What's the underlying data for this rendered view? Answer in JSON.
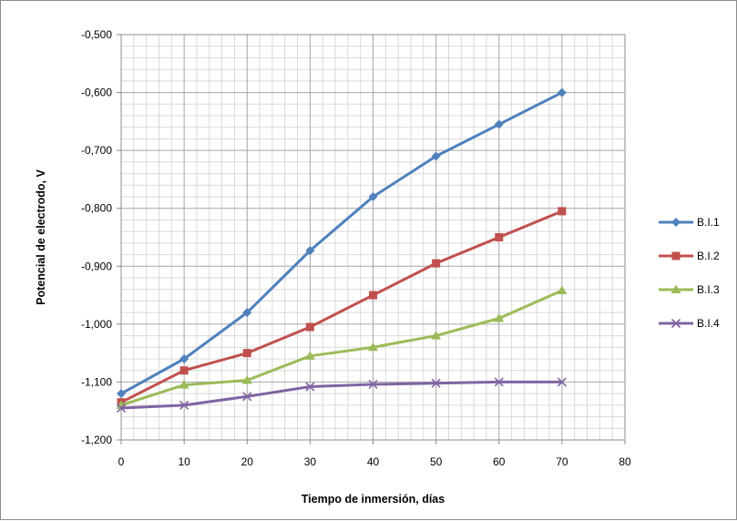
{
  "chart_data": {
    "type": "line",
    "title": "",
    "xlabel": "Tiempo de inmersión, días",
    "ylabel": "Potencial de electrodo, V",
    "xlim": [
      0,
      80
    ],
    "ylim": [
      -1.2,
      -0.5
    ],
    "x_ticks": [
      0,
      10,
      20,
      30,
      40,
      50,
      60,
      70,
      80
    ],
    "x_tick_labels": [
      "0",
      "10",
      "20",
      "30",
      "40",
      "50",
      "60",
      "70",
      "80"
    ],
    "y_ticks": [
      -0.5,
      -0.6,
      -0.7,
      -0.8,
      -0.9,
      -1.0,
      -1.1,
      -1.2
    ],
    "y_tick_labels": [
      "-0,500",
      "-0,600",
      "-0,700",
      "-0,800",
      "-0,900",
      "-1,000",
      "-1,100",
      "-1,200"
    ],
    "grid": true,
    "legend_position": "right",
    "x": [
      0,
      10,
      20,
      30,
      40,
      50,
      60,
      70
    ],
    "series": [
      {
        "name": "B.I.1",
        "color": "#4f81bd",
        "marker": "diamond",
        "values": [
          -1.12,
          -1.06,
          -0.98,
          -0.873,
          -0.78,
          -0.71,
          -0.655,
          -0.6
        ]
      },
      {
        "name": "B.I.2",
        "color": "#c0504d",
        "marker": "square",
        "values": [
          -1.135,
          -1.08,
          -1.05,
          -1.005,
          -0.95,
          -0.895,
          -0.85,
          -0.805
        ]
      },
      {
        "name": "B.I.3",
        "color": "#9bbb59",
        "marker": "triangle",
        "values": [
          -1.14,
          -1.105,
          -1.097,
          -1.055,
          -1.04,
          -1.02,
          -0.99,
          -0.942
        ]
      },
      {
        "name": "B.I.4",
        "color": "#8064a2",
        "marker": "x",
        "values": [
          -1.145,
          -1.14,
          -1.125,
          -1.108,
          -1.104,
          -1.102,
          -1.1,
          -1.1
        ]
      }
    ]
  }
}
